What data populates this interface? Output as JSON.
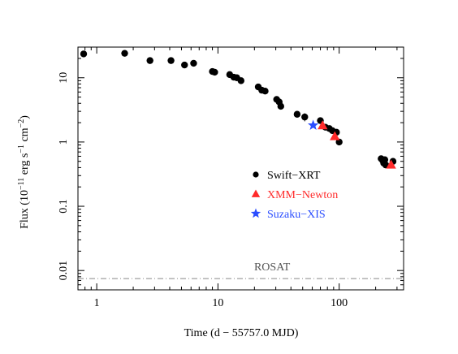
{
  "chart_data": {
    "type": "scatter",
    "title": "",
    "xlabel": "Time (d − 55757.0 MJD)",
    "ylabel_parts": {
      "prefix": "Flux (10",
      "exp1": "−11",
      "mid1": " erg s",
      "exp2": "−1",
      "mid2": " cm",
      "exp3": "−2",
      "suffix": ")"
    },
    "x_scale": "log",
    "y_scale": "log",
    "xlim": [
      0.7,
      340
    ],
    "ylim": [
      0.005,
      30
    ],
    "x_ticks": [
      {
        "value": 1,
        "label": "1"
      },
      {
        "value": 10,
        "label": "10"
      },
      {
        "value": 100,
        "label": "100"
      }
    ],
    "y_ticks": [
      {
        "value": 0.01,
        "label": "0.01"
      },
      {
        "value": 0.1,
        "label": "0.1"
      },
      {
        "value": 1,
        "label": "1"
      },
      {
        "value": 10,
        "label": "10"
      }
    ],
    "grid": false,
    "legend_position": "center-right",
    "series": [
      {
        "name": "Swift−XRT",
        "marker": "circle",
        "color": "#000000",
        "points": [
          {
            "x": 0.78,
            "y": 23.5
          },
          {
            "x": 1.7,
            "y": 24.0
          },
          {
            "x": 2.75,
            "y": 18.5
          },
          {
            "x": 4.1,
            "y": 18.5
          },
          {
            "x": 5.3,
            "y": 15.8
          },
          {
            "x": 6.3,
            "y": 16.8
          },
          {
            "x": 9.0,
            "y": 12.5
          },
          {
            "x": 9.4,
            "y": 12.2
          },
          {
            "x": 12.5,
            "y": 11.2
          },
          {
            "x": 13.5,
            "y": 10.2
          },
          {
            "x": 14.3,
            "y": 10.0
          },
          {
            "x": 15.5,
            "y": 9.0
          },
          {
            "x": 21.5,
            "y": 7.2
          },
          {
            "x": 23.0,
            "y": 6.4
          },
          {
            "x": 24.5,
            "y": 6.2
          },
          {
            "x": 30.5,
            "y": 4.6
          },
          {
            "x": 32.0,
            "y": 4.2
          },
          {
            "x": 33.0,
            "y": 3.6
          },
          {
            "x": 45.0,
            "y": 2.7
          },
          {
            "x": 52.0,
            "y": 2.45,
            "yerr": 0.35
          },
          {
            "x": 70.0,
            "y": 2.15
          },
          {
            "x": 77.0,
            "y": 1.7
          },
          {
            "x": 83.0,
            "y": 1.62
          },
          {
            "x": 88.0,
            "y": 1.5
          },
          {
            "x": 95.0,
            "y": 1.42
          },
          {
            "x": 100.0,
            "y": 1.0
          },
          {
            "x": 222.0,
            "y": 0.55
          },
          {
            "x": 228.0,
            "y": 0.52
          },
          {
            "x": 233.0,
            "y": 0.47
          },
          {
            "x": 238.0,
            "y": 0.53
          },
          {
            "x": 242.0,
            "y": 0.44
          },
          {
            "x": 278.0,
            "y": 0.5,
            "yerr": 0.06
          }
        ]
      },
      {
        "name": "XMM−Newton",
        "marker": "triangle",
        "color": "#ff2a2a",
        "points": [
          {
            "x": 73.0,
            "y": 1.8
          },
          {
            "x": 92.0,
            "y": 1.22
          },
          {
            "x": 268.0,
            "y": 0.44
          }
        ]
      },
      {
        "name": "Suzaku−XIS",
        "marker": "star",
        "color": "#2a4dff",
        "points": [
          {
            "x": 61.0,
            "y": 1.82
          }
        ]
      }
    ],
    "reference_lines": [
      {
        "label": "ROSAT",
        "y": 0.0075,
        "style": "dashed",
        "color": "#888888"
      }
    ]
  }
}
